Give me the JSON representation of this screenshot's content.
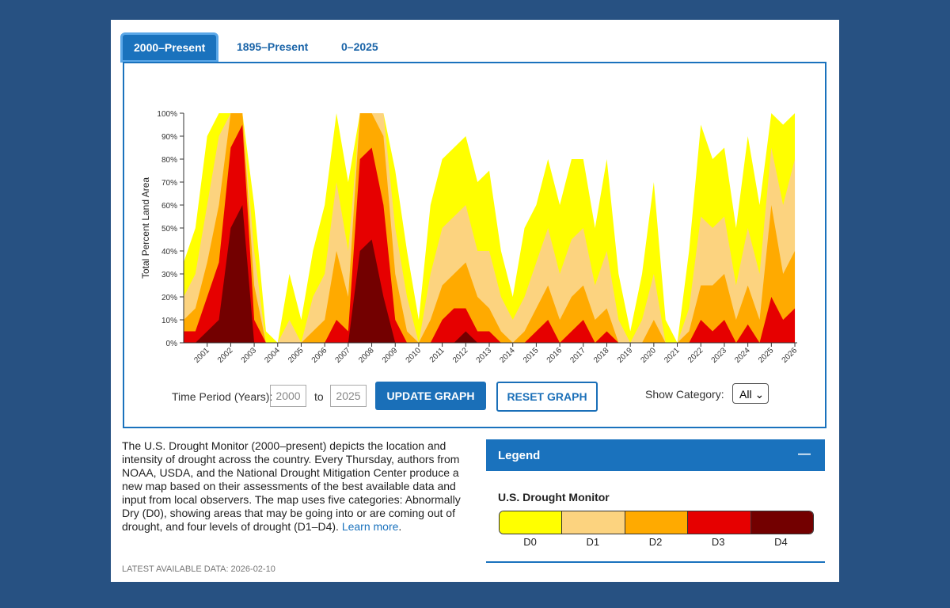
{
  "tabs": [
    "2000–Present",
    "1895–Present",
    "0–2025"
  ],
  "chart_data": {
    "type": "area",
    "y_label": "Total Percent Land Area",
    "x": [
      2000.0,
      2000.5,
      2001.0,
      2001.5,
      2002.0,
      2002.5,
      2003.0,
      2003.5,
      2004.0,
      2004.5,
      2005.0,
      2005.5,
      2006.0,
      2006.5,
      2007.0,
      2007.5,
      2008.0,
      2008.5,
      2009.0,
      2009.5,
      2010.0,
      2010.5,
      2011.0,
      2011.5,
      2012.0,
      2012.5,
      2013.0,
      2013.5,
      2014.0,
      2014.5,
      2015.0,
      2015.5,
      2016.0,
      2016.5,
      2017.0,
      2017.5,
      2018.0,
      2018.5,
      2019.0,
      2019.5,
      2020.0,
      2020.5,
      2021.0,
      2021.5,
      2022.0,
      2022.5,
      2023.0,
      2023.5,
      2024.0,
      2024.5,
      2025.0,
      2025.5,
      2026.0
    ],
    "series": [
      {
        "name": "D0",
        "color": "#ffff00",
        "values": [
          35,
          50,
          90,
          100,
          100,
          100,
          60,
          5,
          0,
          30,
          10,
          40,
          60,
          100,
          70,
          100,
          100,
          100,
          75,
          40,
          10,
          60,
          80,
          85,
          90,
          70,
          75,
          40,
          20,
          50,
          60,
          80,
          60,
          80,
          80,
          50,
          80,
          30,
          5,
          30,
          70,
          10,
          0,
          40,
          95,
          80,
          85,
          50,
          90,
          60,
          100,
          95,
          100
        ]
      },
      {
        "name": "D1",
        "color": "#fcd37f",
        "values": [
          20,
          30,
          60,
          90,
          100,
          100,
          40,
          0,
          0,
          10,
          0,
          20,
          30,
          70,
          40,
          100,
          100,
          100,
          50,
          20,
          0,
          30,
          50,
          55,
          60,
          40,
          40,
          20,
          10,
          20,
          35,
          50,
          30,
          45,
          50,
          25,
          40,
          10,
          0,
          10,
          30,
          0,
          0,
          15,
          55,
          50,
          55,
          25,
          50,
          30,
          85,
          60,
          80
        ]
      },
      {
        "name": "D2",
        "color": "#ffaa00",
        "values": [
          10,
          15,
          35,
          60,
          100,
          100,
          25,
          0,
          0,
          0,
          0,
          5,
          10,
          40,
          20,
          100,
          100,
          90,
          30,
          5,
          0,
          10,
          25,
          30,
          35,
          20,
          15,
          5,
          0,
          5,
          15,
          25,
          10,
          20,
          25,
          10,
          15,
          0,
          0,
          0,
          10,
          0,
          0,
          5,
          25,
          25,
          30,
          10,
          25,
          10,
          60,
          30,
          40
        ]
      },
      {
        "name": "D3",
        "color": "#e60000",
        "values": [
          5,
          5,
          20,
          35,
          85,
          95,
          10,
          0,
          0,
          0,
          0,
          0,
          0,
          10,
          5,
          80,
          85,
          60,
          10,
          0,
          0,
          0,
          10,
          15,
          15,
          5,
          5,
          0,
          0,
          0,
          5,
          10,
          0,
          5,
          10,
          0,
          5,
          0,
          0,
          0,
          0,
          0,
          0,
          0,
          10,
          5,
          10,
          0,
          8,
          0,
          20,
          10,
          15
        ]
      },
      {
        "name": "D4",
        "color": "#730000",
        "values": [
          0,
          0,
          5,
          10,
          50,
          60,
          0,
          0,
          0,
          0,
          0,
          0,
          0,
          0,
          0,
          40,
          45,
          20,
          0,
          0,
          0,
          0,
          0,
          0,
          5,
          0,
          0,
          0,
          0,
          0,
          0,
          0,
          0,
          0,
          0,
          0,
          0,
          0,
          0,
          0,
          0,
          0,
          0,
          0,
          0,
          0,
          0,
          0,
          0,
          0,
          0,
          0,
          0
        ]
      }
    ],
    "xlim": [
      2000,
      2026.1
    ],
    "xticks": [
      2001,
      2002,
      2003,
      2004,
      2005,
      2006,
      2007,
      2008,
      2009,
      2010,
      2011,
      2012,
      2013,
      2014,
      2015,
      2016,
      2017,
      2018,
      2019,
      2020,
      2021,
      2022,
      2023,
      2024,
      2025,
      2026
    ],
    "ylim": [
      0,
      100
    ],
    "yticks": [
      {
        "value": 0,
        "label": "0%"
      },
      {
        "value": 10,
        "label": "10%"
      },
      {
        "value": 20,
        "label": "20%"
      },
      {
        "value": 30,
        "label": "30%"
      },
      {
        "value": 40,
        "label": "40%"
      },
      {
        "value": 50,
        "label": "50%"
      },
      {
        "value": 60,
        "label": "60%"
      },
      {
        "value": 70,
        "label": "70%"
      },
      {
        "value": 80,
        "label": "80%"
      },
      {
        "value": 90,
        "label": "90%"
      },
      {
        "value": 100,
        "label": "100%"
      }
    ]
  },
  "controls": {
    "time_period_label": "Time Period (Years):",
    "from": "2000",
    "to_label": "to",
    "to": "2025",
    "update": "UPDATE GRAPH",
    "reset": "RESET GRAPH",
    "category_label": "Show Category:",
    "category": "All"
  },
  "description": {
    "text": "The U.S. Drought Monitor (2000–present) depicts the location and intensity of drought across the country. Every Thursday, authors from NOAA, USDA, and the National Drought Mitigation Center produce a new map based on their assessments of the best available data and input from local observers. The map uses five categories: Abnormally Dry (D0), showing areas that may be going into or are coming out of drought, and four levels of drought (D1–D4).",
    "link": "Learn more",
    "link_suffix": "."
  },
  "latest": "LATEST AVAILABLE DATA: 2026-02-10",
  "legend": {
    "header": "Legend",
    "toggle": "—",
    "title": "U.S. Drought Monitor"
  }
}
